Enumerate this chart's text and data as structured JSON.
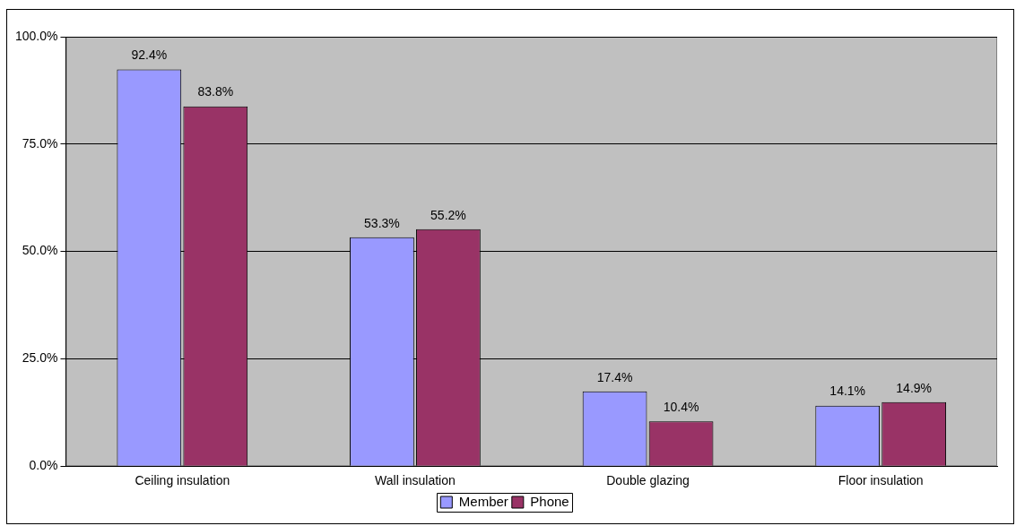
{
  "chart_data": {
    "type": "bar",
    "categories": [
      "Ceiling insulation",
      "Wall insulation",
      "Double glazing",
      "Floor insulation"
    ],
    "series": [
      {
        "name": "Member",
        "color": "#9999ff",
        "values": [
          92.4,
          53.3,
          17.4,
          14.1
        ]
      },
      {
        "name": "Phone",
        "color": "#993366",
        "values": [
          83.8,
          55.2,
          10.4,
          14.9
        ]
      }
    ],
    "ylim": [
      0,
      100
    ],
    "yticks": [
      {
        "value": 0,
        "label": "0.0%"
      },
      {
        "value": 25,
        "label": "25.0%"
      },
      {
        "value": 50,
        "label": "50.0%"
      },
      {
        "value": 75,
        "label": "75.0%"
      },
      {
        "value": 100,
        "label": "100.0%"
      }
    ],
    "value_labels": [
      [
        "92.4%",
        "53.3%",
        "17.4%",
        "14.1%"
      ],
      [
        "83.8%",
        "55.2%",
        "10.4%",
        "14.9%"
      ]
    ],
    "grid": "y",
    "legend": "bottom"
  }
}
